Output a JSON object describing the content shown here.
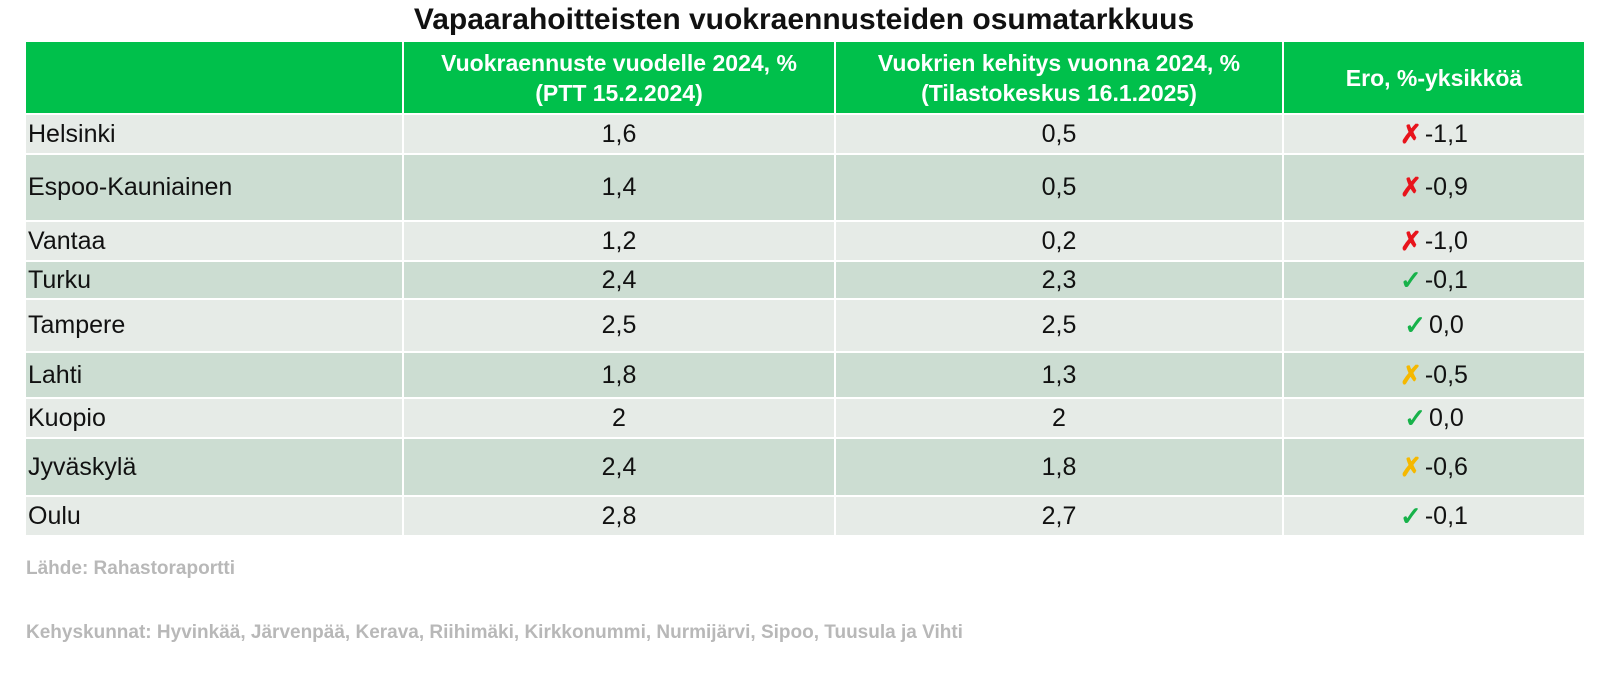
{
  "title": "Vapaarahoitteisten vuokraennusteiden osumatarkkuus",
  "table": {
    "headers": [
      "",
      "Vuokraennuste vuodelle 2024, %\n(PTT 15.2.2024)",
      "Vuokrien kehitys vuonna 2024, %\n(Tilastokeskus 16.1.2025)",
      "Ero, %-yksikköä"
    ],
    "rows": [
      {
        "city": "Helsinki",
        "forecast": "1,6",
        "actual": "0,5",
        "mark": "✗",
        "mark_color": "#e8141c",
        "diff": "-1,1"
      },
      {
        "city": "Espoo-Kauniainen",
        "forecast": "1,4",
        "actual": "0,5",
        "mark": "✗",
        "mark_color": "#e8141c",
        "diff": "-0,9"
      },
      {
        "city": "Vantaa",
        "forecast": "1,2",
        "actual": "0,2",
        "mark": "✗",
        "mark_color": "#e8141c",
        "diff": "-1,0"
      },
      {
        "city": "Turku",
        "forecast": "2,4",
        "actual": "2,3",
        "mark": "✓",
        "mark_color": "#17b24a",
        "diff": "-0,1"
      },
      {
        "city": "Tampere",
        "forecast": "2,5",
        "actual": "2,5",
        "mark": "✓",
        "mark_color": "#17b24a",
        "diff": "0,0"
      },
      {
        "city": "Lahti",
        "forecast": "1,8",
        "actual": "1,3",
        "mark": "✗",
        "mark_color": "#f5b800",
        "diff": "-0,5"
      },
      {
        "city": "Kuopio",
        "forecast": "2",
        "actual": "2",
        "mark": "✓",
        "mark_color": "#17b24a",
        "diff": "0,0"
      },
      {
        "city": "Jyväskylä",
        "forecast": "2,4",
        "actual": "1,8",
        "mark": "✗",
        "mark_color": "#f5b800",
        "diff": "-0,6"
      },
      {
        "city": "Oulu",
        "forecast": "2,8",
        "actual": "2,7",
        "mark": "✓",
        "mark_color": "#17b24a",
        "diff": "-0,1"
      }
    ]
  },
  "source": "Lähde: Rahastoraportti",
  "note": "Kehyskunnat: Hyvinkää, Järvenpää, Kerava, Riihimäki, Kirkkonummi, Nurmijärvi, Sipoo, Tuusula ja Vihti",
  "colors": {
    "header_bg": "#00c04b",
    "row_light": "#e6ebe7",
    "row_dark": "#ccddd2",
    "cross_red": "#e8141c",
    "cross_yellow": "#f5b800",
    "check_green": "#17b24a"
  }
}
